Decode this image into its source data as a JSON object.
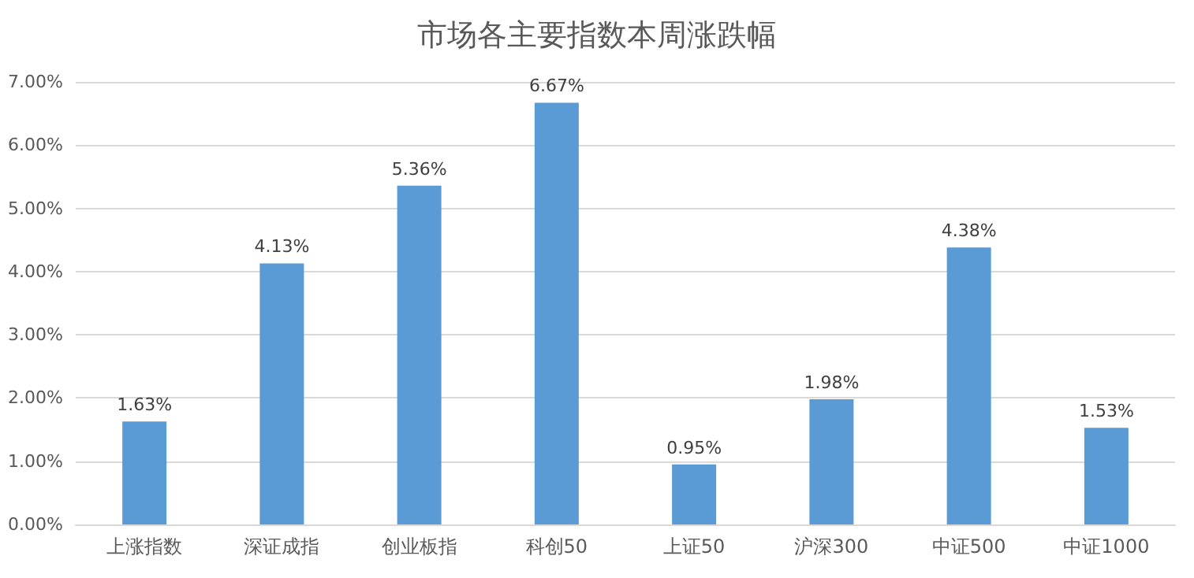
{
  "chart_data": {
    "type": "bar",
    "title": "市场各主要指数本周涨跌幅",
    "categories": [
      "上涨指数",
      "深证成指",
      "创业板指",
      "科创50",
      "上证50",
      "沪深300",
      "中证500",
      "中证1000"
    ],
    "values": [
      1.63,
      4.13,
      5.36,
      6.67,
      0.95,
      1.98,
      4.38,
      1.53
    ],
    "value_labels": [
      "1.63%",
      "4.13%",
      "5.36%",
      "6.67%",
      "0.95%",
      "1.98%",
      "4.38%",
      "1.53%"
    ],
    "color": "#5b9bd5",
    "ylim": [
      0,
      7
    ],
    "yticks": [
      {
        "value": 0,
        "label": "0.00%"
      },
      {
        "value": 1,
        "label": "1.00%"
      },
      {
        "value": 2,
        "label": "2.00%"
      },
      {
        "value": 3,
        "label": "3.00%"
      },
      {
        "value": 4,
        "label": "4.00%"
      },
      {
        "value": 5,
        "label": "5.00%"
      },
      {
        "value": 6,
        "label": "6.00%"
      },
      {
        "value": 7,
        "label": "7.00%"
      }
    ],
    "grid": "y"
  }
}
